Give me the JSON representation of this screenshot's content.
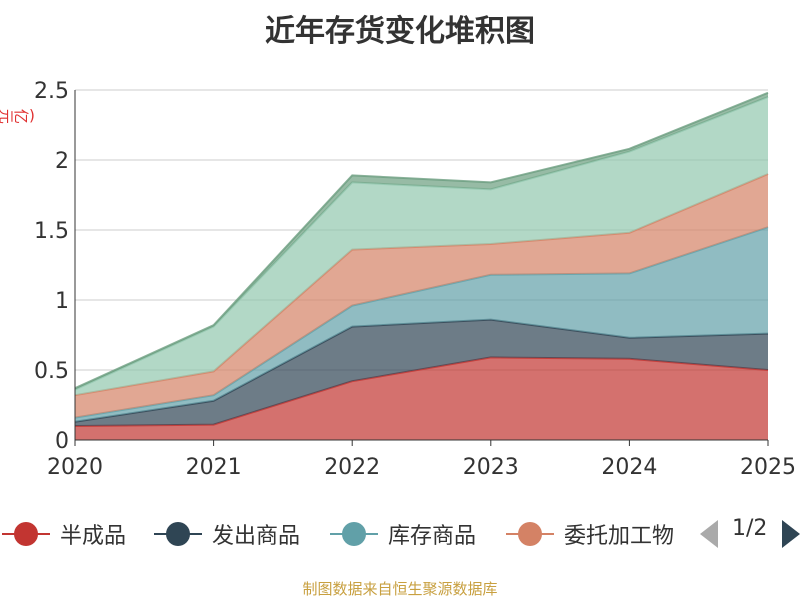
{
  "title": "近年存货变化堆积图",
  "unit": "(亿元)",
  "source": "制图数据来自恒生聚源数据库",
  "legend_pager": "1/2",
  "chart_data": {
    "type": "area",
    "stacked": true,
    "title": "近年存货变化堆积图",
    "ylabel": "(亿元)",
    "x": [
      "2020",
      "2021",
      "2022",
      "2023",
      "2024",
      "2025"
    ],
    "ylim": [
      0,
      2.5
    ],
    "yticks": [
      "0",
      "0.5",
      "1",
      "1.5",
      "2",
      "2.5"
    ],
    "grid": true,
    "legend_position": "bottom",
    "series": [
      {
        "name": "半成品",
        "color": "#c23531",
        "values": [
          0.1,
          0.11,
          0.42,
          0.59,
          0.58,
          0.5
        ]
      },
      {
        "name": "发出商品",
        "color": "#2f4554",
        "values": [
          0.03,
          0.17,
          0.39,
          0.27,
          0.15,
          0.26
        ]
      },
      {
        "name": "库存商品",
        "color": "#61a0a8",
        "values": [
          0.03,
          0.04,
          0.15,
          0.32,
          0.46,
          0.76
        ]
      },
      {
        "name": "委托加工物",
        "color": "#d48265",
        "values": [
          0.16,
          0.17,
          0.4,
          0.22,
          0.29,
          0.38
        ]
      },
      {
        "name": "",
        "color": "#91c7ae",
        "values": [
          0.04,
          0.32,
          0.48,
          0.39,
          0.58,
          0.55
        ]
      },
      {
        "name": "",
        "color": "#6b9e7f",
        "values": [
          0.01,
          0.01,
          0.05,
          0.05,
          0.02,
          0.03
        ]
      }
    ]
  }
}
